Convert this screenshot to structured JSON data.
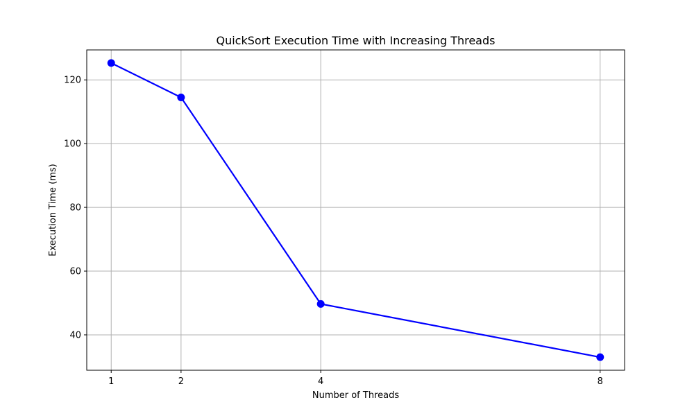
{
  "chart_data": {
    "type": "line",
    "title": "QuickSort Execution Time with Increasing Threads",
    "xlabel": "Number of Threads",
    "ylabel": "Execution Time (ms)",
    "x": [
      1,
      2,
      4,
      8
    ],
    "xticks": [
      "1",
      "2",
      "4",
      "8"
    ],
    "yticks": [
      "40",
      "60",
      "80",
      "100",
      "120"
    ],
    "series": [
      {
        "values": [
          125.3,
          114.5,
          49.7,
          33.0
        ],
        "color": "#0000ff",
        "marker": "circle"
      }
    ],
    "xlim": [
      0.65,
      8.35
    ],
    "ylim": [
      28.9,
      129.4
    ],
    "grid": true,
    "legend": "none"
  }
}
